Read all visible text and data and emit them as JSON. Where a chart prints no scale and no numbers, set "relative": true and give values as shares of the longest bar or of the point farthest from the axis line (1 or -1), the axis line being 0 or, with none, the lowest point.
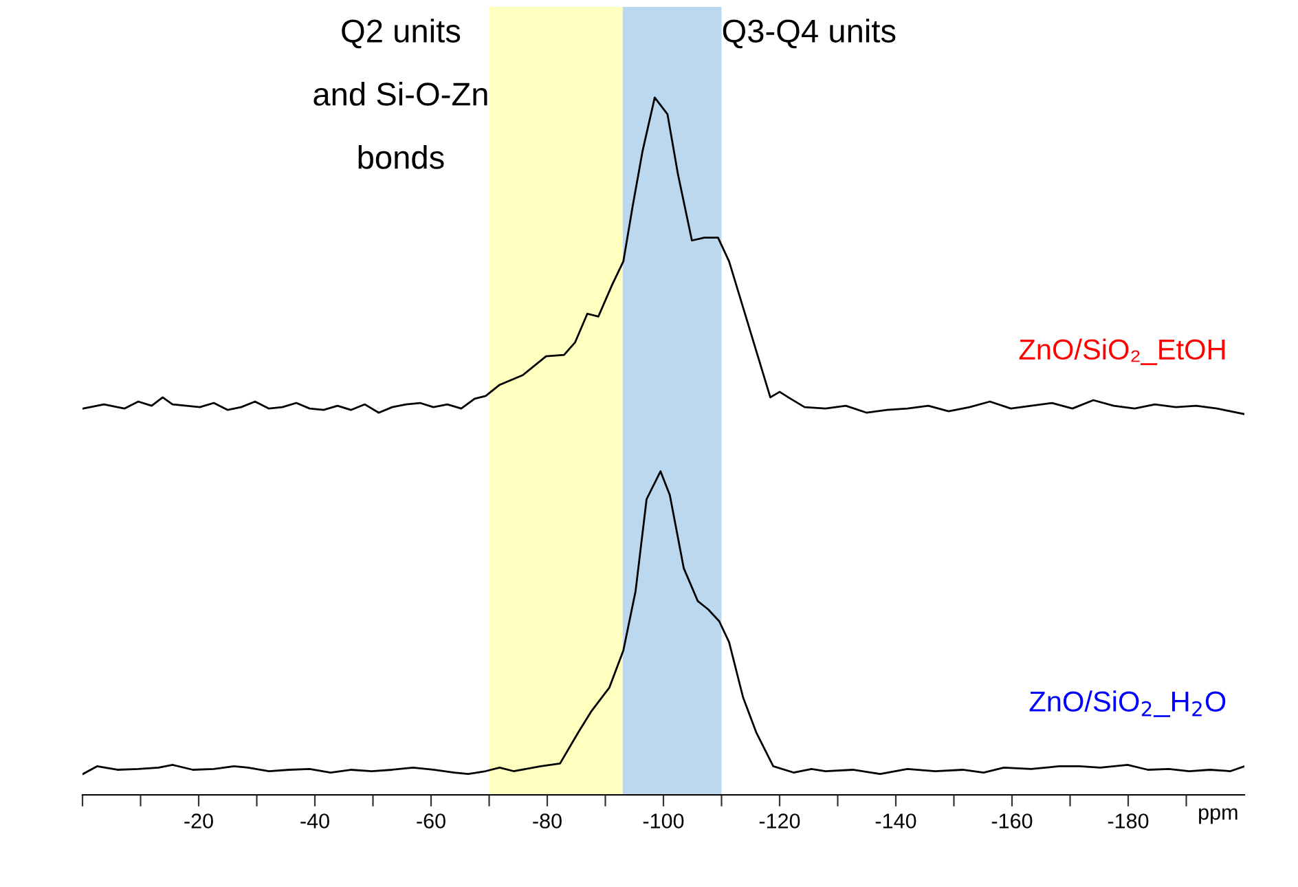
{
  "chart_data": {
    "type": "line",
    "relative": true,
    "xlabel": "ppm",
    "xlim": [
      0,
      -200
    ],
    "xticks": [
      {
        "value": 0,
        "label": null
      },
      {
        "value": -10,
        "label": null
      },
      -20,
      {
        "value": -30,
        "label": null
      },
      -40,
      {
        "value": -50,
        "label": null
      },
      -60,
      {
        "value": -70,
        "label": null
      },
      -80,
      {
        "value": -90,
        "label": null
      },
      -100,
      {
        "value": -110,
        "label": null
      },
      -120,
      {
        "value": -130,
        "label": null
      },
      -140,
      {
        "value": -150,
        "label": null
      },
      -160,
      {
        "value": -170,
        "label": null
      },
      -180,
      {
        "value": -190,
        "label": null
      }
    ],
    "grid": false,
    "legend": false,
    "marker": "none",
    "line_style": "solid",
    "bands": [
      {
        "axis": "x",
        "from": -70,
        "to": -93,
        "label": "Q2 units\nand Si-O-Zn\nbonds",
        "color": "#ffffc0"
      },
      {
        "axis": "x",
        "from": -93,
        "to": -110,
        "label": "Q3-Q4 units",
        "color": "#bcd8ee"
      }
    ],
    "series": [
      {
        "name": "ZnO/SiO₂_EtOH",
        "color": "#000000",
        "x": [
          -0.1,
          -3.7,
          -7.2,
          -9.6,
          -11.9,
          -13.8,
          -15.5,
          -17.9,
          -20.2,
          -22.6,
          -25.0,
          -27.3,
          -29.7,
          -32.1,
          -34.4,
          -36.8,
          -39.1,
          -41.5,
          -43.9,
          -46.2,
          -48.6,
          -51.0,
          -53.3,
          -55.7,
          -58.1,
          -60.4,
          -62.8,
          -65.2,
          -67.5,
          -69.4,
          -71.8,
          -75.8,
          -79.8,
          -82.9,
          -84.8,
          -86.9,
          -88.8,
          -91.2,
          -93.1,
          -94.7,
          -96.4,
          -98.5,
          -100.7,
          -102.5,
          -104.9,
          -107.0,
          -109.4,
          -111.3,
          -114.4,
          -118.4,
          -120.0,
          -121.5,
          -124.3,
          -127.9,
          -131.4,
          -135.0,
          -138.5,
          -142.0,
          -145.6,
          -149.1,
          -152.7,
          -156.2,
          -159.8,
          -163.3,
          -166.9,
          -170.4,
          -174.0,
          -177.5,
          -181.1,
          -184.6,
          -188.2,
          -191.7,
          -195.3,
          -197.6,
          -200
        ],
        "values": [
          0.554,
          0.56,
          0.554,
          0.564,
          0.558,
          0.57,
          0.56,
          0.558,
          0.556,
          0.562,
          0.552,
          0.556,
          0.564,
          0.554,
          0.556,
          0.562,
          0.554,
          0.552,
          0.558,
          0.552,
          0.56,
          0.548,
          0.556,
          0.56,
          0.562,
          0.556,
          0.56,
          0.554,
          0.568,
          0.572,
          0.588,
          0.602,
          0.629,
          0.631,
          0.649,
          0.69,
          0.686,
          0.732,
          0.765,
          0.844,
          0.923,
          1,
          0.976,
          0.89,
          0.795,
          0.799,
          0.799,
          0.765,
          0.68,
          0.57,
          0.578,
          0.57,
          0.556,
          0.554,
          0.558,
          0.548,
          0.552,
          0.554,
          0.558,
          0.55,
          0.556,
          0.564,
          0.554,
          0.558,
          0.562,
          0.554,
          0.566,
          0.558,
          0.554,
          0.56,
          0.556,
          0.558,
          0.554,
          0.55,
          0.546
        ]
      },
      {
        "name": "ZnO/SiO$_{2}$_H$_{2}$O",
        "color": "#000000",
        "x": [
          -0.1,
          -2.5,
          -6.0,
          -9.6,
          -13.1,
          -15.5,
          -19.0,
          -22.6,
          -26.1,
          -28.5,
          -32.1,
          -35.6,
          -39.1,
          -42.7,
          -46.2,
          -49.8,
          -53.3,
          -56.9,
          -60.4,
          -64.0,
          -66.4,
          -69.4,
          -71.8,
          -74.2,
          -78.9,
          -82.2,
          -85.3,
          -87.6,
          -90.7,
          -93.1,
          -95.2,
          -97.1,
          -99.5,
          -101.1,
          -103.5,
          -105.9,
          -107.7,
          -109.6,
          -111.3,
          -113.7,
          -116.0,
          -118.9,
          -122.4,
          -125.5,
          -127.9,
          -132.6,
          -137.3,
          -142.0,
          -146.8,
          -151.5,
          -155.1,
          -158.6,
          -163.3,
          -168.1,
          -171.6,
          -175.2,
          -179.9,
          -183.4,
          -187.0,
          -190.5,
          -194.1,
          -197.6,
          -200
        ],
        "values": [
          0.03,
          0.041,
          0.036,
          0.037,
          0.039,
          0.043,
          0.036,
          0.037,
          0.041,
          0.039,
          0.034,
          0.036,
          0.037,
          0.032,
          0.036,
          0.034,
          0.036,
          0.039,
          0.036,
          0.032,
          0.03,
          0.034,
          0.039,
          0.034,
          0.041,
          0.045,
          0.089,
          0.12,
          0.154,
          0.207,
          0.292,
          0.424,
          0.464,
          0.43,
          0.325,
          0.278,
          0.266,
          0.249,
          0.219,
          0.14,
          0.089,
          0.041,
          0.032,
          0.037,
          0.034,
          0.036,
          0.03,
          0.037,
          0.034,
          0.036,
          0.032,
          0.039,
          0.037,
          0.041,
          0.041,
          0.039,
          0.043,
          0.036,
          0.037,
          0.034,
          0.036,
          0.034,
          0.041
        ]
      }
    ]
  }
}
